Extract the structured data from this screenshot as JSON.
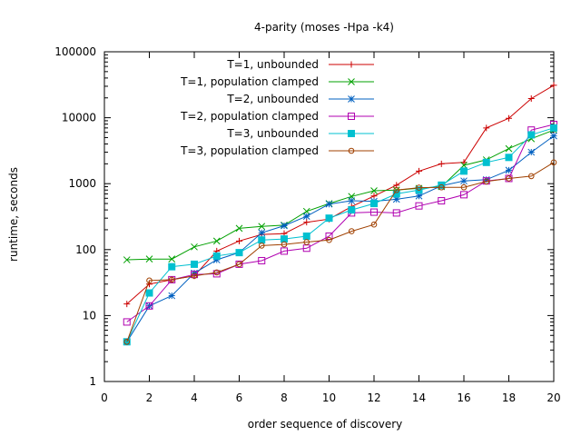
{
  "chart_data": {
    "type": "line",
    "title": "4-parity (moses -Hpa -k4)",
    "xlabel": "order sequence of discovery",
    "ylabel": "runtime, seconds",
    "xlim": [
      0,
      20
    ],
    "ylim": [
      1,
      100000
    ],
    "yscale": "log",
    "grid": false,
    "legend_position": "top-left",
    "x_ticks": [
      "0",
      "2",
      "4",
      "6",
      "8",
      "10",
      "12",
      "14",
      "16",
      "18",
      "20"
    ],
    "y_ticks": [
      "1",
      "10",
      "100",
      "1000",
      "10000",
      "100000"
    ],
    "x": [
      1,
      2,
      3,
      4,
      5,
      6,
      7,
      8,
      9,
      10,
      11,
      12,
      13,
      14,
      15,
      16,
      17,
      18,
      19,
      20
    ],
    "series": [
      {
        "name": "T=1, unbounded",
        "color": "#cc0000",
        "marker": "plus",
        "values": [
          15,
          30,
          35,
          40,
          95,
          135,
          170,
          175,
          260,
          290,
          450,
          650,
          950,
          1550,
          2000,
          2100,
          7000,
          9800,
          19500,
          31000
        ]
      },
      {
        "name": "T=1, population clamped",
        "color": "#00a000",
        "marker": "x",
        "values": [
          70,
          72,
          72,
          110,
          135,
          210,
          225,
          235,
          380,
          500,
          640,
          780,
          800,
          850,
          900,
          1900,
          2300,
          3400,
          4800,
          6500
        ]
      },
      {
        "name": "T=2, unbounded",
        "color": "#0060c0",
        "marker": "star",
        "values": [
          4,
          14,
          20,
          44,
          70,
          90,
          180,
          230,
          320,
          490,
          550,
          540,
          580,
          650,
          930,
          1100,
          1150,
          1600,
          3000,
          5300
        ]
      },
      {
        "name": "T=2, population clamped",
        "color": "#b000b0",
        "marker": "square-open",
        "values": [
          8,
          14,
          35,
          42,
          43,
          60,
          68,
          95,
          105,
          160,
          360,
          370,
          360,
          460,
          550,
          680,
          1100,
          1200,
          6500,
          7900
        ]
      },
      {
        "name": "T=3, unbounded",
        "color": "#00c0d0",
        "marker": "square-filled",
        "values": [
          4,
          22,
          55,
          60,
          80,
          90,
          140,
          145,
          160,
          300,
          400,
          500,
          700,
          800,
          950,
          1550,
          2100,
          2500,
          5500,
          7000
        ]
      },
      {
        "name": "T=3, population clamped",
        "color": "#a04000",
        "marker": "circle-open",
        "values": [
          4,
          34,
          35,
          40,
          45,
          60,
          115,
          120,
          130,
          140,
          190,
          240,
          800,
          870,
          880,
          880,
          1080,
          1200,
          1300,
          2100
        ]
      }
    ]
  }
}
